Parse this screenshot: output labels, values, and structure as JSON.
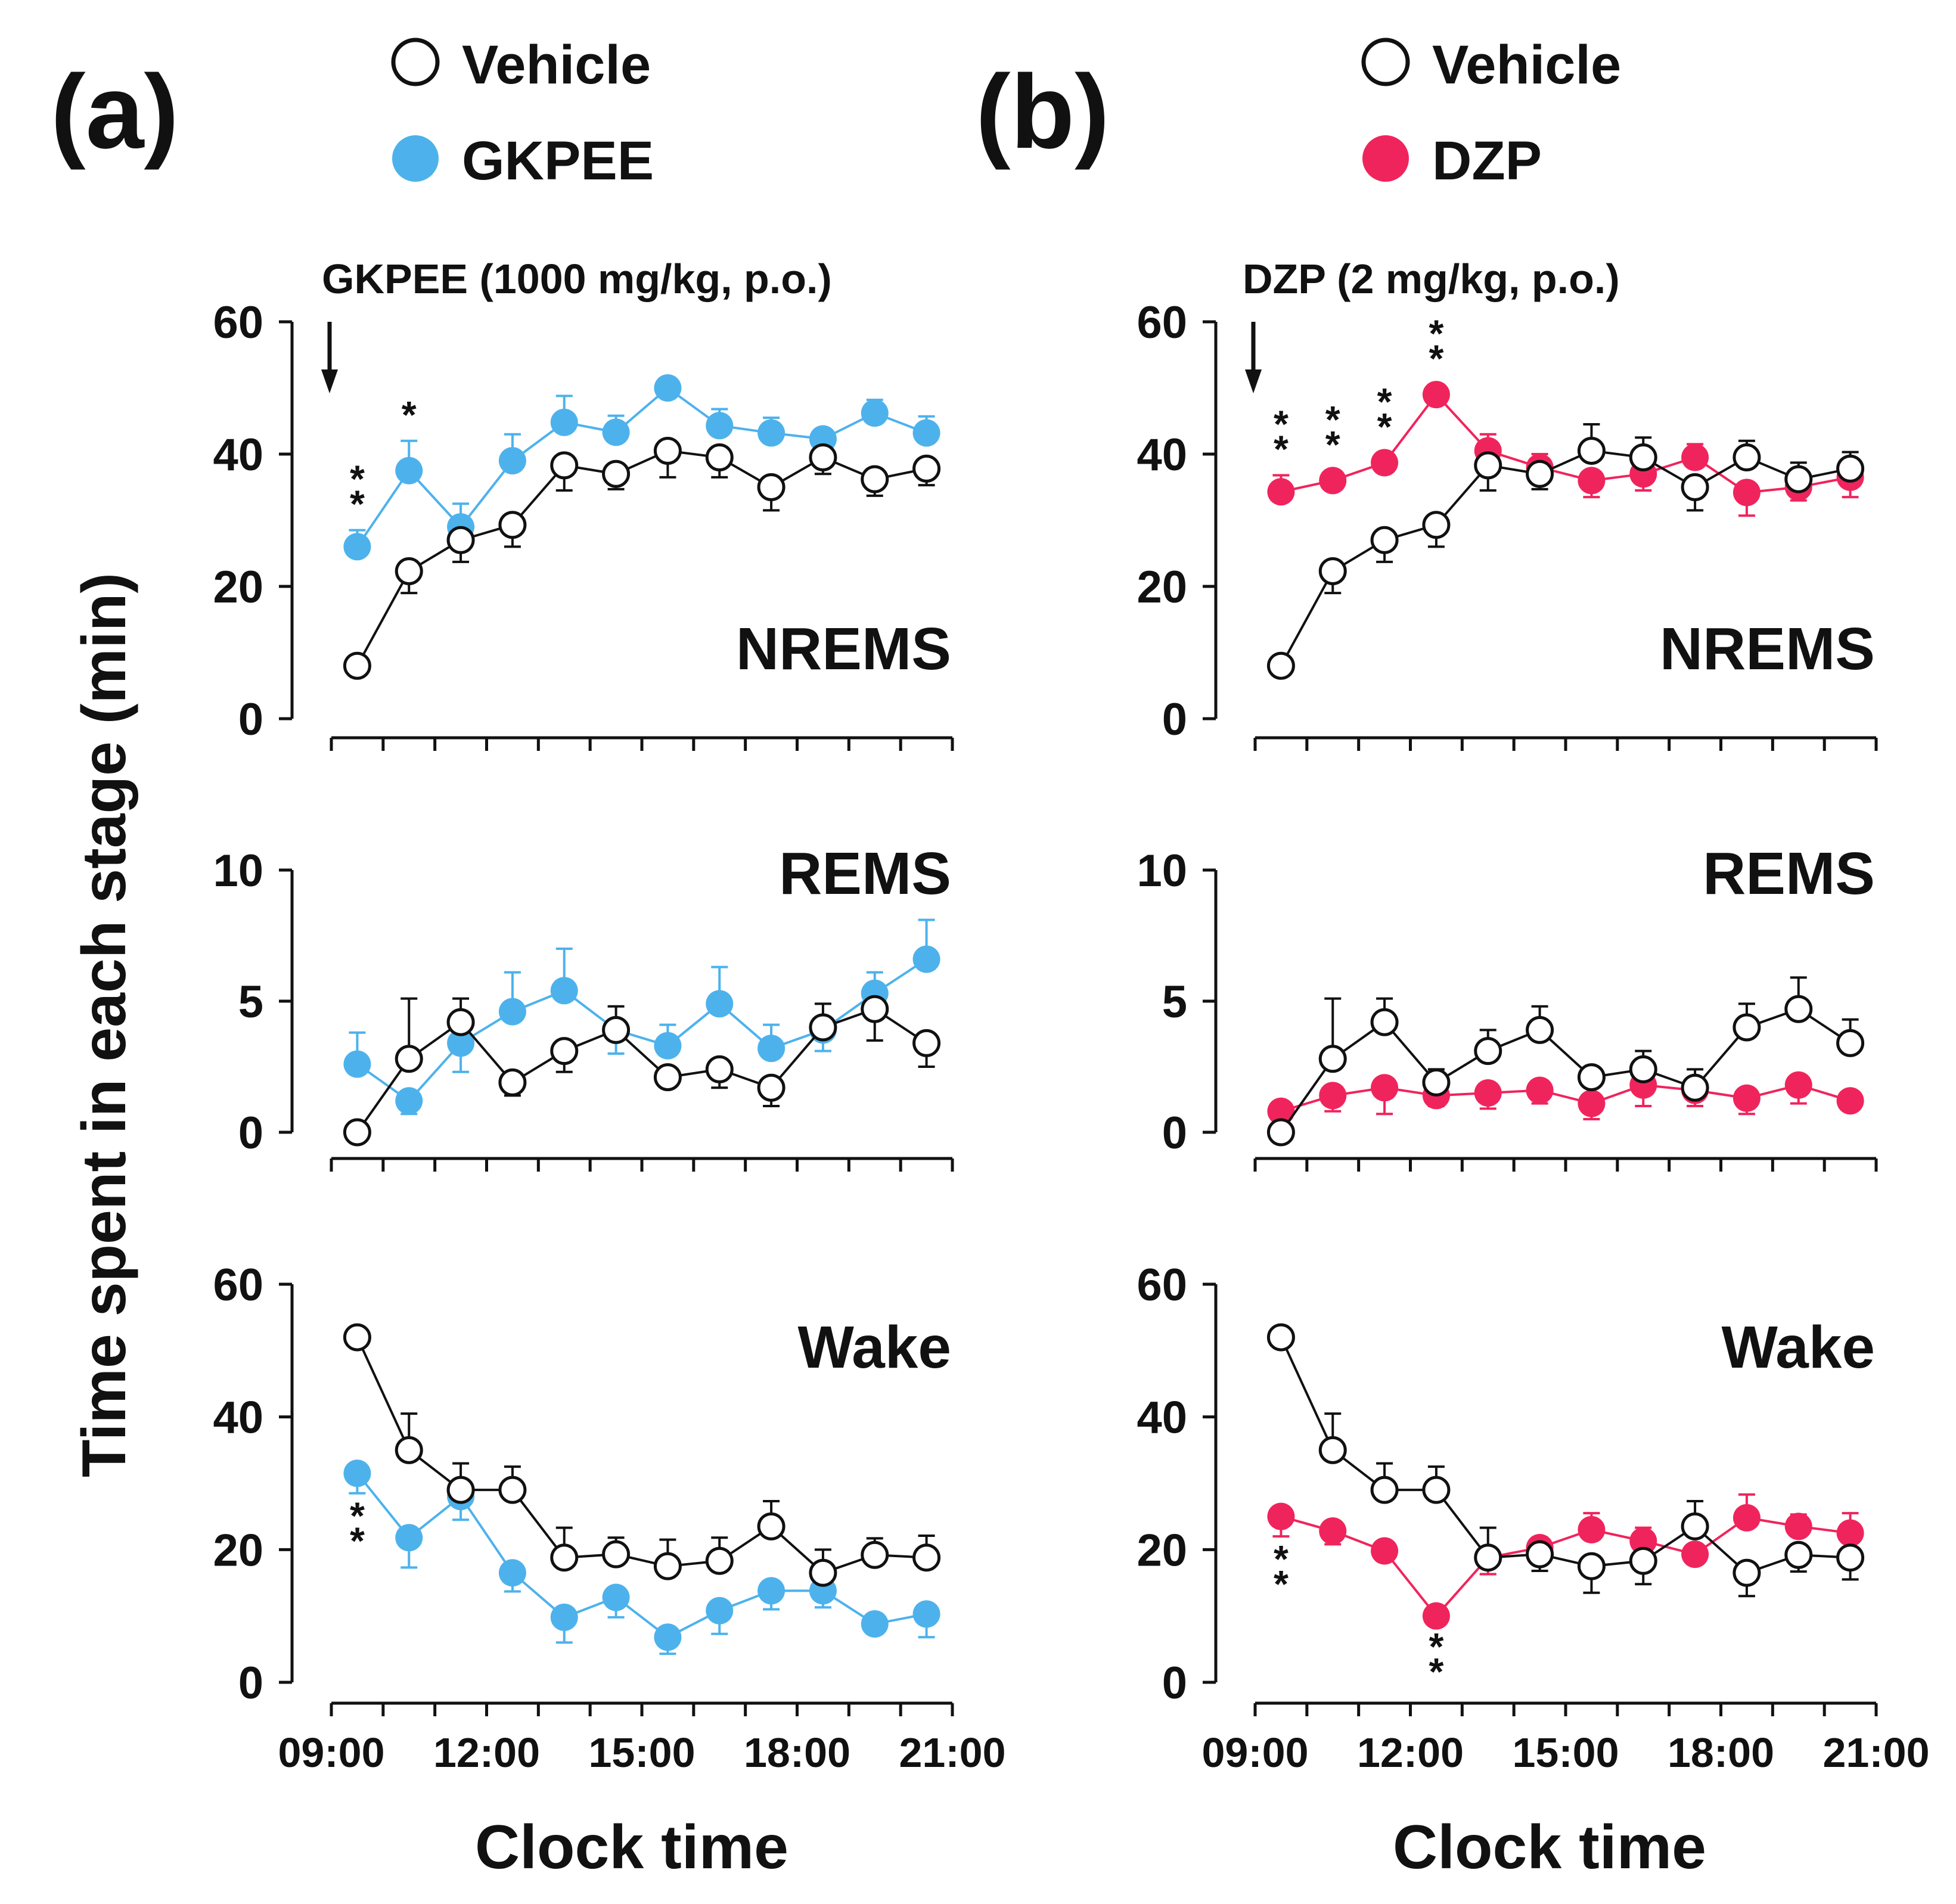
{
  "colors": {
    "vehicle": "#111111",
    "gkpee": "#4db2ec",
    "dzp": "#f0245c",
    "axis": "#111111"
  },
  "y_axis_label": "Time spent in each stage (min)",
  "chart_data": [
    {
      "panel_label": "(a)",
      "legend": [
        {
          "label": "Vehicle",
          "color": "#111111",
          "marker": "open-circle"
        },
        {
          "label": "GKPEE",
          "color": "#4db2ec",
          "marker": "filled-circle"
        }
      ],
      "annotation": "GKPEE (1000 mg/kg, p.o.)",
      "xlabel": "Clock time",
      "x_ticks": [
        "09:00",
        "12:00",
        "15:00",
        "18:00",
        "21:00"
      ],
      "x_range_hours": [
        9,
        21
      ],
      "x_points_hours": [
        9.5,
        10.5,
        11.5,
        12.5,
        13.5,
        14.5,
        15.5,
        16.5,
        17.5,
        18.5,
        19.5,
        20.5
      ],
      "subplots": [
        {
          "type": "line",
          "title": "NREMS",
          "ylim": [
            0,
            60
          ],
          "yticks": [
            0,
            20,
            40,
            60
          ],
          "series": [
            {
              "name": "Vehicle",
              "values": [
                8,
                22.3,
                27,
                29.3,
                38.3,
                37,
                40.5,
                39.5,
                35,
                39.5,
                36.2,
                37.8
              ],
              "err": [
                1.2,
                3.3,
                3.3,
                3.3,
                3.8,
                2.3,
                4,
                3,
                3.5,
                2.5,
                2.5,
                2.5
              ]
            },
            {
              "name": "GKPEE",
              "values": [
                26,
                37.5,
                29,
                39,
                44.8,
                43.3,
                50,
                44.3,
                43.2,
                42.3,
                46.2,
                43.2
              ],
              "err": [
                2.5,
                4.5,
                3.5,
                4,
                4,
                2.5,
                1.5,
                2.5,
                2.3,
                1.5,
                2,
                2.5
              ]
            }
          ],
          "significance": [
            {
              "x_index": 0,
              "mark": "**"
            },
            {
              "x_index": 1,
              "mark": "*"
            }
          ]
        },
        {
          "type": "line",
          "title": "REMS",
          "ylim": [
            0,
            10
          ],
          "yticks": [
            0,
            5,
            10
          ],
          "series": [
            {
              "name": "Vehicle",
              "values": [
                0,
                2.8,
                4.2,
                1.9,
                3.1,
                3.9,
                2.1,
                2.4,
                1.7,
                4,
                4.7,
                3.4
              ],
              "err": [
                0.2,
                2.3,
                0.9,
                0.5,
                0.8,
                0.9,
                0.3,
                0.7,
                0.7,
                0.9,
                1.2,
                0.9
              ]
            },
            {
              "name": "GKPEE",
              "values": [
                2.6,
                1.2,
                3.4,
                4.6,
                5.4,
                3.9,
                3.3,
                4.9,
                3.2,
                3.9,
                5.3,
                6.6
              ],
              "err": [
                1.2,
                0.5,
                1.1,
                1.5,
                1.6,
                0.9,
                0.8,
                1.4,
                0.9,
                0.8,
                0.8,
                1.5
              ]
            }
          ],
          "significance": []
        },
        {
          "type": "line",
          "title": "Wake",
          "ylim": [
            0,
            60
          ],
          "yticks": [
            0,
            20,
            40,
            60
          ],
          "series": [
            {
              "name": "Vehicle",
              "values": [
                52,
                35,
                29,
                29,
                18.8,
                19.3,
                17.5,
                18.3,
                23.5,
                16.5,
                19.2,
                18.8
              ],
              "err": [
                1.2,
                5.5,
                4,
                3.5,
                4.5,
                2.5,
                4,
                3.5,
                3.8,
                3.5,
                2.5,
                3.3
              ]
            },
            {
              "name": "GKPEE",
              "values": [
                31.5,
                21.8,
                28,
                16.5,
                9.8,
                12.8,
                6.8,
                10.8,
                13.8,
                13.8,
                8.8,
                10.3
              ],
              "err": [
                3,
                4.5,
                3.5,
                2.8,
                3.8,
                3,
                2.5,
                3.5,
                2.8,
                2.5,
                1.5,
                3.5
              ]
            }
          ],
          "significance": [
            {
              "x_index": 0,
              "mark": "**"
            }
          ]
        }
      ]
    },
    {
      "panel_label": "(b)",
      "legend": [
        {
          "label": "Vehicle",
          "color": "#111111",
          "marker": "open-circle"
        },
        {
          "label": "DZP",
          "color": "#f0245c",
          "marker": "filled-circle"
        }
      ],
      "annotation": "DZP (2 mg/kg, p.o.)",
      "xlabel": "Clock time",
      "x_ticks": [
        "09:00",
        "12:00",
        "15:00",
        "18:00",
        "21:00"
      ],
      "x_range_hours": [
        9,
        21
      ],
      "x_points_hours": [
        9.5,
        10.5,
        11.5,
        12.5,
        13.5,
        14.5,
        15.5,
        16.5,
        17.5,
        18.5,
        19.5,
        20.5
      ],
      "subplots": [
        {
          "type": "line",
          "title": "NREMS",
          "ylim": [
            0,
            60
          ],
          "yticks": [
            0,
            20,
            40,
            60
          ],
          "series": [
            {
              "name": "Vehicle",
              "values": [
                8,
                22.3,
                27,
                29.3,
                38.3,
                37,
                40.5,
                39.5,
                35,
                39.5,
                36.2,
                37.8
              ],
              "err": [
                1.2,
                3.3,
                3.3,
                3.3,
                3.8,
                2.3,
                4,
                3,
                3.5,
                2.5,
                2.5,
                2.5
              ]
            },
            {
              "name": "DZP",
              "values": [
                34.3,
                36,
                38.7,
                49,
                40.5,
                38,
                36,
                37,
                39.5,
                34.2,
                35,
                36.5
              ],
              "err": [
                2.5,
                1.5,
                1.5,
                1.5,
                2.5,
                2,
                2.5,
                2.5,
                2,
                3.5,
                2,
                3
              ]
            }
          ],
          "significance": [
            {
              "x_index": 0,
              "mark": "**"
            },
            {
              "x_index": 1,
              "mark": "**"
            },
            {
              "x_index": 2,
              "mark": "**"
            },
            {
              "x_index": 3,
              "mark": "**"
            }
          ]
        },
        {
          "type": "line",
          "title": "REMS",
          "ylim": [
            0,
            10
          ],
          "yticks": [
            0,
            5,
            10
          ],
          "series": [
            {
              "name": "Vehicle",
              "values": [
                0,
                2.8,
                4.2,
                1.9,
                3.1,
                3.9,
                2.1,
                2.4,
                1.7,
                4,
                4.7,
                3.4
              ],
              "err": [
                0.2,
                2.3,
                0.9,
                0.5,
                0.8,
                0.9,
                0.3,
                0.7,
                0.7,
                0.9,
                1.2,
                0.9
              ]
            },
            {
              "name": "DZP",
              "values": [
                0.8,
                1.4,
                1.7,
                1.4,
                1.5,
                1.6,
                1.1,
                1.8,
                1.6,
                1.3,
                1.8,
                1.2
              ],
              "err": [
                0.3,
                0.6,
                1,
                0.4,
                0.6,
                0.5,
                0.6,
                0.8,
                0.6,
                0.6,
                0.7,
                0.3
              ]
            }
          ],
          "significance": []
        },
        {
          "type": "line",
          "title": "Wake",
          "ylim": [
            0,
            60
          ],
          "yticks": [
            0,
            20,
            40,
            60
          ],
          "series": [
            {
              "name": "Vehicle",
              "values": [
                52,
                35,
                29,
                29,
                18.8,
                19.3,
                17.5,
                18.3,
                23.5,
                16.5,
                19.2,
                18.8
              ],
              "err": [
                1.2,
                5.5,
                4,
                3.5,
                4.5,
                2.5,
                4,
                3.5,
                3.8,
                3.5,
                2.5,
                3.3
              ]
            },
            {
              "name": "DZP",
              "values": [
                25,
                22.8,
                19.8,
                10,
                18.8,
                20.3,
                23,
                21.3,
                19.3,
                24.8,
                23.5,
                22.5
              ],
              "err": [
                3,
                2,
                1.5,
                1.2,
                2.5,
                1.5,
                2.5,
                2,
                1.5,
                3.5,
                1.8,
                3
              ]
            }
          ],
          "significance": [
            {
              "x_index": 0,
              "mark": "**"
            },
            {
              "x_index": 3,
              "mark": "**"
            }
          ]
        }
      ]
    }
  ]
}
